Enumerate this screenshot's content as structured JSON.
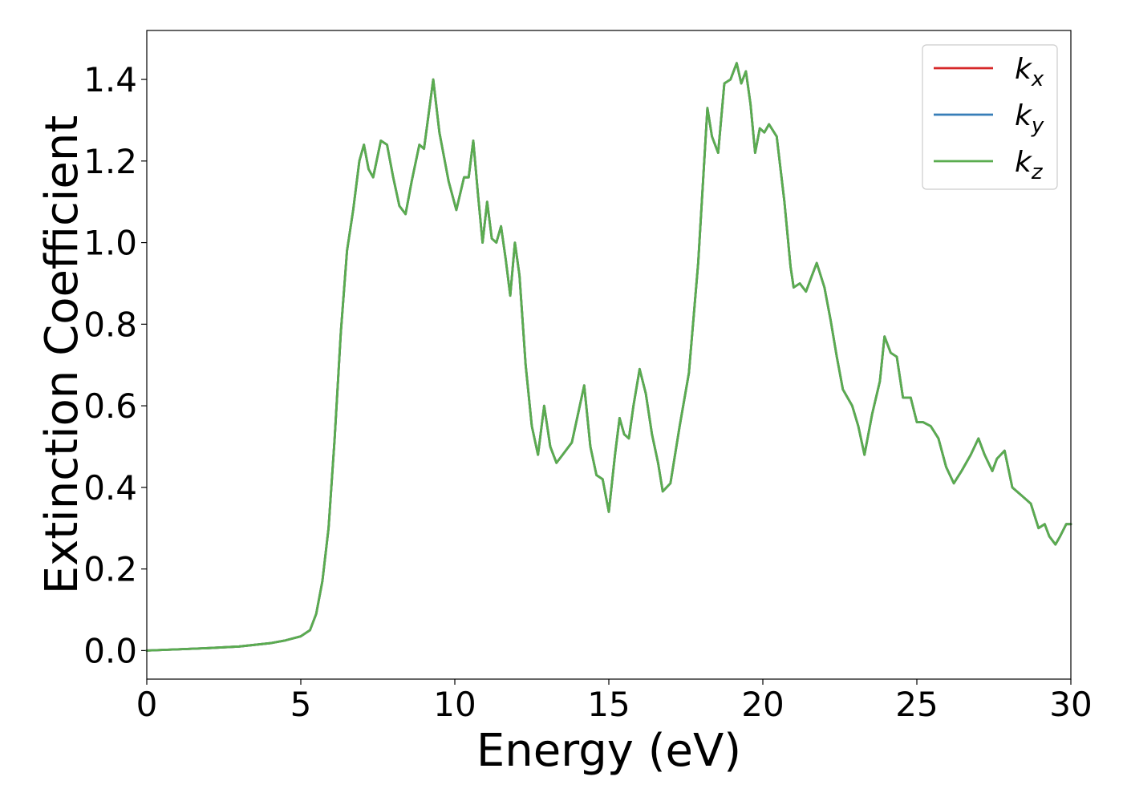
{
  "chart_data": {
    "type": "line",
    "title": "",
    "xlabel": "Energy (eV)",
    "ylabel": "Extinction Coefficient",
    "xlim": [
      0,
      30
    ],
    "ylim": [
      -0.07,
      1.52
    ],
    "grid": false,
    "x_ticks": [
      0,
      5,
      10,
      15,
      20,
      25,
      30
    ],
    "x_tick_labels": [
      "0",
      "5",
      "10",
      "15",
      "20",
      "25",
      "30"
    ],
    "y_ticks": [
      0.0,
      0.2,
      0.4,
      0.6,
      0.8,
      1.0,
      1.2,
      1.4
    ],
    "y_tick_labels": [
      "0.0",
      "0.2",
      "0.4",
      "0.6",
      "0.8",
      "1.0",
      "1.2",
      "1.4"
    ],
    "legend": {
      "placement": "top-right",
      "entries": [
        {
          "base": "k",
          "sub": "x",
          "color": "#d62728"
        },
        {
          "base": "k",
          "sub": "y",
          "color": "#377eb8"
        },
        {
          "base": "k",
          "sub": "z",
          "color": "#5aac4f"
        }
      ]
    },
    "series": [
      {
        "name": "k_x",
        "color": "#d62728",
        "ref": "shared"
      },
      {
        "name": "k_y",
        "color": "#377eb8",
        "ref": "shared"
      },
      {
        "name": "k_z",
        "color": "#5aac4f",
        "ref": "shared"
      }
    ],
    "x": [
      0,
      1,
      2,
      3,
      4,
      4.5,
      5,
      5.3,
      5.5,
      5.7,
      5.9,
      6.1,
      6.3,
      6.5,
      6.7,
      6.9,
      7.05,
      7.2,
      7.35,
      7.6,
      7.8,
      8.0,
      8.2,
      8.4,
      8.6,
      8.85,
      9.0,
      9.3,
      9.5,
      9.8,
      10.05,
      10.3,
      10.45,
      10.6,
      10.75,
      10.9,
      11.05,
      11.2,
      11.35,
      11.5,
      11.65,
      11.8,
      11.95,
      12.1,
      12.3,
      12.5,
      12.7,
      12.9,
      13.1,
      13.3,
      13.5,
      13.8,
      14.0,
      14.2,
      14.4,
      14.6,
      14.8,
      15.0,
      15.2,
      15.35,
      15.5,
      15.65,
      15.8,
      16.0,
      16.2,
      16.4,
      16.6,
      16.75,
      17.0,
      17.3,
      17.6,
      17.9,
      18.2,
      18.35,
      18.55,
      18.75,
      18.95,
      19.15,
      19.3,
      19.45,
      19.6,
      19.75,
      19.9,
      20.05,
      20.2,
      20.45,
      20.7,
      20.9,
      21.0,
      21.2,
      21.4,
      21.6,
      21.75,
      22.0,
      22.2,
      22.4,
      22.6,
      22.9,
      23.1,
      23.3,
      23.55,
      23.8,
      23.95,
      24.15,
      24.35,
      24.55,
      24.8,
      25.0,
      25.2,
      25.45,
      25.7,
      25.95,
      26.2,
      26.45,
      26.75,
      27.0,
      27.2,
      27.45,
      27.6,
      27.85,
      28.1,
      28.4,
      28.7,
      28.95,
      29.15,
      29.3,
      29.5,
      29.65,
      29.85,
      30.0
    ],
    "y": [
      0.0,
      0.003,
      0.006,
      0.01,
      0.018,
      0.025,
      0.035,
      0.05,
      0.09,
      0.17,
      0.3,
      0.52,
      0.78,
      0.98,
      1.08,
      1.2,
      1.24,
      1.18,
      1.16,
      1.25,
      1.24,
      1.16,
      1.09,
      1.07,
      1.15,
      1.24,
      1.23,
      1.4,
      1.27,
      1.15,
      1.08,
      1.16,
      1.16,
      1.25,
      1.12,
      1.0,
      1.1,
      1.01,
      1.0,
      1.04,
      0.96,
      0.87,
      1.0,
      0.92,
      0.7,
      0.55,
      0.48,
      0.6,
      0.5,
      0.46,
      0.48,
      0.51,
      0.58,
      0.65,
      0.5,
      0.43,
      0.42,
      0.34,
      0.48,
      0.57,
      0.53,
      0.52,
      0.6,
      0.69,
      0.63,
      0.53,
      0.46,
      0.39,
      0.41,
      0.55,
      0.68,
      0.95,
      1.33,
      1.26,
      1.22,
      1.39,
      1.4,
      1.44,
      1.39,
      1.42,
      1.34,
      1.22,
      1.28,
      1.27,
      1.29,
      1.26,
      1.1,
      0.94,
      0.89,
      0.9,
      0.88,
      0.92,
      0.95,
      0.89,
      0.81,
      0.72,
      0.64,
      0.6,
      0.55,
      0.48,
      0.58,
      0.66,
      0.77,
      0.73,
      0.72,
      0.62,
      0.62,
      0.56,
      0.56,
      0.55,
      0.52,
      0.45,
      0.41,
      0.44,
      0.48,
      0.52,
      0.48,
      0.44,
      0.47,
      0.49,
      0.4,
      0.38,
      0.36,
      0.3,
      0.31,
      0.28,
      0.26,
      0.28,
      0.31,
      0.31
    ]
  }
}
